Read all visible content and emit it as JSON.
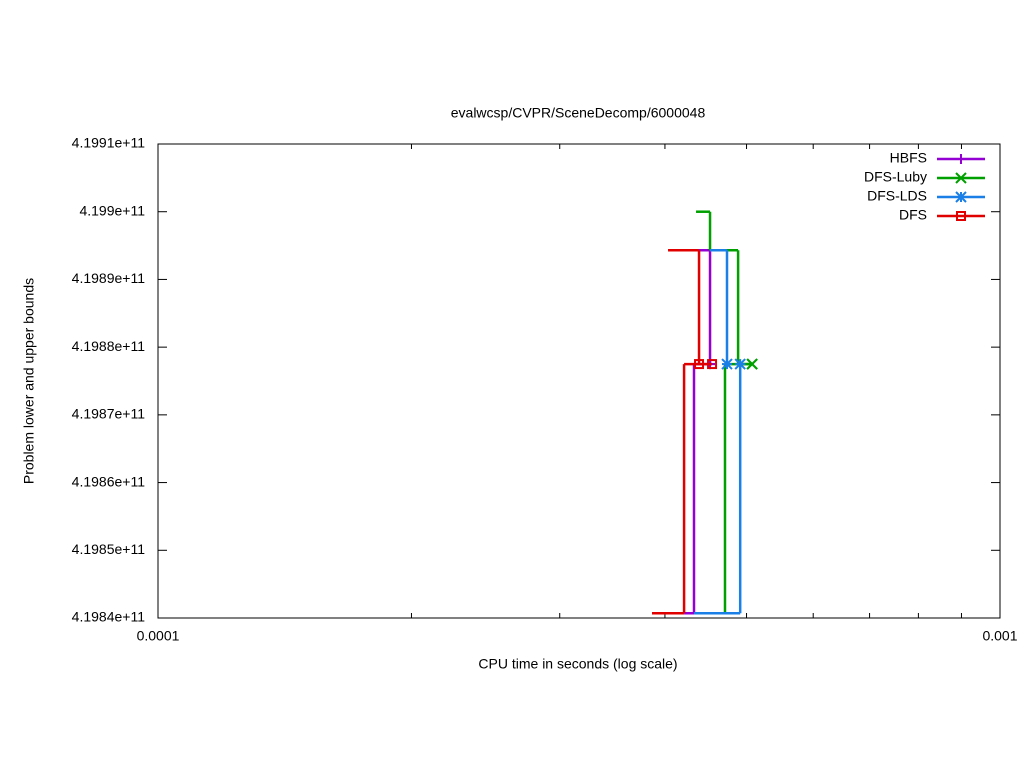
{
  "chart_data": {
    "type": "step",
    "title": "evalwcsp/CVPR/SceneDecomp/6000048",
    "x_label": "CPU time in seconds (log scale)",
    "y_label": "Problem lower and upper bounds",
    "xscale": "log",
    "xlim": [
      0.0001,
      0.001
    ],
    "xticks": [
      0.0001,
      0.001
    ],
    "xminor_ticks": [
      0.0002,
      0.0003,
      0.0004,
      0.0005,
      0.0006,
      0.0007,
      0.0008,
      0.0009
    ],
    "ylim": [
      419840000000,
      419910000000
    ],
    "yticks": [
      {
        "value": 419840000000,
        "label": "4.1984e+11"
      },
      {
        "value": 419850000000,
        "label": "4.1985e+11"
      },
      {
        "value": 419860000000,
        "label": "4.1986e+11"
      },
      {
        "value": 419870000000,
        "label": "4.1987e+11"
      },
      {
        "value": 419880000000,
        "label": "4.1988e+11"
      },
      {
        "value": 419890000000,
        "label": "4.1989e+11"
      },
      {
        "value": 419900000000,
        "label": "4.199e+11"
      },
      {
        "value": 419910000000,
        "label": "4.1991e+11"
      }
    ],
    "grid": false,
    "legend": "top-right",
    "series": [
      {
        "name": "HBFS",
        "color": "#9400d3",
        "marker": "plus",
        "x": [
          0.0004169,
          0.0004525,
          null,
          0.0004215,
          0.0004331,
          0.0004525
        ],
        "values": [
          419894300000,
          419877500000,
          null,
          419840700000,
          419877500000,
          419877500000
        ]
      },
      {
        "name": "DFS-Luby",
        "color": "#00a000",
        "marker": "cross",
        "x": [
          0.0004355,
          0.0004525,
          0.0004886,
          0.0005077,
          null,
          0.0004525,
          0.0004714,
          0.0005077
        ],
        "values": [
          419900000000,
          419894300000,
          419877500000,
          419877500000,
          null,
          419840700000,
          419877500000,
          419877500000
        ]
      },
      {
        "name": "DFS-LDS",
        "color": "#1a7fe6",
        "marker": "star",
        "x": [
          0.0004525,
          0.000474,
          null,
          0.0004331,
          0.0004914,
          0.0004914
        ],
        "values": [
          419894300000,
          419877500000,
          null,
          419840700000,
          419877500000,
          419877500000
        ]
      },
      {
        "name": "DFS",
        "color": "#e00000",
        "marker": "square",
        "x": [
          0.0004034,
          0.0004391,
          null,
          0.0003861,
          0.0004215,
          0.000455
        ],
        "values": [
          419894300000,
          419877500000,
          null,
          419840700000,
          419877500000,
          419877500000
        ]
      }
    ]
  }
}
